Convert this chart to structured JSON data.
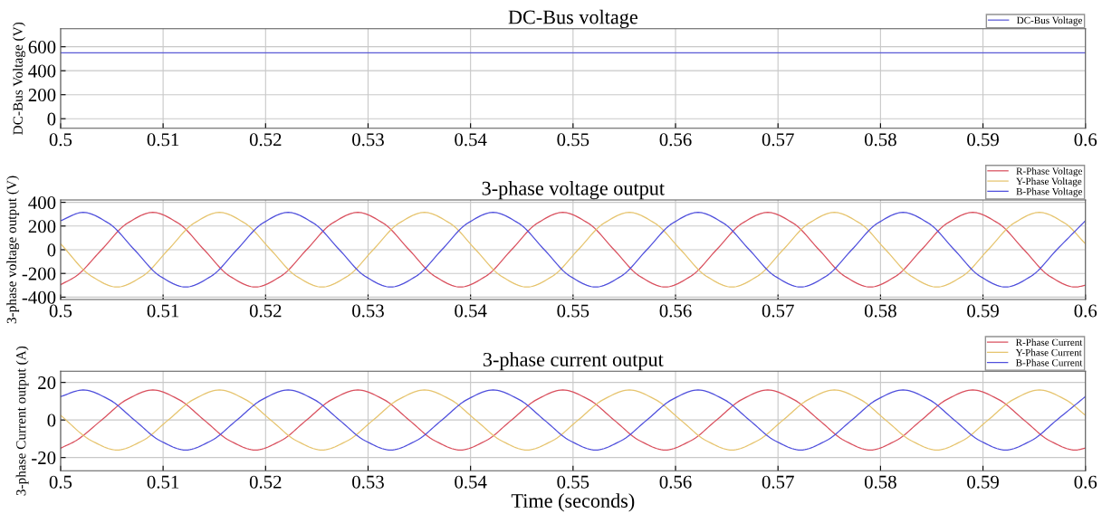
{
  "chart_data": [
    {
      "type": "line",
      "title": "DC-Bus voltage",
      "ylabel": "DC-Bus Voltage (V)",
      "xlim": [
        0.5,
        0.6
      ],
      "xticks": [
        0.5,
        0.51,
        0.52,
        0.53,
        0.54,
        0.55,
        0.56,
        0.57,
        0.58,
        0.59,
        0.6
      ],
      "ylim": [
        -80,
        750
      ],
      "yticks": [
        0,
        200,
        400,
        600
      ],
      "grid": true,
      "legend": "top right",
      "series": [
        {
          "name": "DC-Bus Voltage",
          "color": "#5a5ad6",
          "x": [
            0.5,
            0.6
          ],
          "values": [
            550,
            550
          ]
        }
      ]
    },
    {
      "type": "line",
      "title": "3-phase voltage output",
      "ylabel": "3-phase voltage output (V)",
      "xlim": [
        0.5,
        0.6
      ],
      "xticks": [
        0.5,
        0.51,
        0.52,
        0.53,
        0.54,
        0.55,
        0.56,
        0.57,
        0.58,
        0.59,
        0.6
      ],
      "ylim": [
        -420,
        420
      ],
      "yticks": [
        -400,
        -200,
        0,
        200,
        400
      ],
      "grid": true,
      "legend": "top right",
      "series": [
        {
          "name": "R-Phase Voltage",
          "color": "#d9505e",
          "x": [
            0.5,
            0.5015,
            0.504,
            0.5065,
            0.509,
            0.5115,
            0.514,
            0.5165,
            0.519,
            0.5215,
            0.524,
            0.5265,
            0.529,
            0.5315,
            0.534,
            0.5365,
            0.539,
            0.5415,
            0.544,
            0.5465,
            0.549,
            0.5515,
            0.554,
            0.5565,
            0.559,
            0.5615,
            0.564,
            0.5665,
            0.569,
            0.5715,
            0.574,
            0.5765,
            0.579,
            0.5815,
            0.584,
            0.5865,
            0.589,
            0.5915,
            0.594,
            0.5965,
            0.599,
            0.6
          ],
          "values": [
            -295,
            -223,
            0,
            223,
            315,
            223,
            0,
            -223,
            -315,
            -223,
            0,
            223,
            315,
            223,
            0,
            -223,
            -315,
            -223,
            0,
            223,
            315,
            223,
            0,
            -223,
            -315,
            -223,
            0,
            223,
            315,
            223,
            0,
            -223,
            -315,
            -223,
            0,
            223,
            315,
            223,
            0,
            -223,
            -315,
            -300
          ]
        },
        {
          "name": "Y-Phase Voltage",
          "color": "#e6c46e",
          "x": [
            0.5,
            0.503,
            0.5055,
            0.508,
            0.5105,
            0.513,
            0.5155,
            0.518,
            0.5205,
            0.523,
            0.5255,
            0.528,
            0.5305,
            0.533,
            0.5355,
            0.538,
            0.5405,
            0.543,
            0.5455,
            0.548,
            0.5505,
            0.553,
            0.5555,
            0.558,
            0.5605,
            0.563,
            0.5655,
            0.568,
            0.5705,
            0.573,
            0.5755,
            0.578,
            0.5805,
            0.583,
            0.5855,
            0.588,
            0.5905,
            0.593,
            0.5955,
            0.598,
            0.6
          ],
          "values": [
            50,
            -223,
            -315,
            -223,
            0,
            223,
            315,
            223,
            0,
            -223,
            -315,
            -223,
            0,
            223,
            315,
            223,
            0,
            -223,
            -315,
            -223,
            0,
            223,
            315,
            223,
            0,
            -223,
            -315,
            -223,
            0,
            223,
            315,
            223,
            0,
            -223,
            -315,
            -223,
            0,
            223,
            315,
            223,
            50
          ]
        },
        {
          "name": "B-Phase Voltage",
          "color": "#4f4fdc",
          "x": [
            0.5,
            0.5022,
            0.5047,
            0.5072,
            0.5097,
            0.5122,
            0.5147,
            0.5172,
            0.5197,
            0.5222,
            0.5247,
            0.5272,
            0.5297,
            0.5322,
            0.5347,
            0.5372,
            0.5397,
            0.5422,
            0.5447,
            0.5472,
            0.5497,
            0.5522,
            0.5547,
            0.5572,
            0.5597,
            0.5622,
            0.5647,
            0.5672,
            0.5697,
            0.5722,
            0.5747,
            0.5772,
            0.5797,
            0.5822,
            0.5847,
            0.5872,
            0.5897,
            0.5922,
            0.5947,
            0.5972,
            0.6
          ],
          "values": [
            245,
            315,
            223,
            0,
            -223,
            -315,
            -223,
            0,
            223,
            315,
            223,
            0,
            -223,
            -315,
            -223,
            0,
            223,
            315,
            223,
            0,
            -223,
            -315,
            -223,
            0,
            223,
            315,
            223,
            0,
            -223,
            -315,
            -223,
            0,
            223,
            315,
            223,
            0,
            -223,
            -315,
            -223,
            0,
            245
          ]
        }
      ]
    },
    {
      "type": "line",
      "title": "3-phase current output",
      "ylabel": "3-phase Current output (A)",
      "xlabel": "Time (seconds)",
      "xlim": [
        0.5,
        0.6
      ],
      "xticks": [
        0.5,
        0.51,
        0.52,
        0.53,
        0.54,
        0.55,
        0.56,
        0.57,
        0.58,
        0.59,
        0.6
      ],
      "ylim": [
        -27,
        26
      ],
      "yticks": [
        -20,
        0,
        20
      ],
      "grid": true,
      "legend": "top right",
      "series": [
        {
          "name": "R-Phase Current",
          "color": "#d9505e",
          "x": [
            0.5,
            0.5015,
            0.504,
            0.5065,
            0.509,
            0.5115,
            0.514,
            0.5165,
            0.519,
            0.5215,
            0.524,
            0.5265,
            0.529,
            0.5315,
            0.534,
            0.5365,
            0.539,
            0.5415,
            0.544,
            0.5465,
            0.549,
            0.5515,
            0.554,
            0.5565,
            0.559,
            0.5615,
            0.564,
            0.5665,
            0.569,
            0.5715,
            0.574,
            0.5765,
            0.579,
            0.5815,
            0.584,
            0.5865,
            0.589,
            0.5915,
            0.594,
            0.5965,
            0.599,
            0.6
          ],
          "values": [
            -15,
            -11,
            0,
            11,
            16,
            11,
            0,
            -11,
            -16,
            -11,
            0,
            11,
            16,
            11,
            0,
            -11,
            -16,
            -11,
            0,
            11,
            16,
            11,
            0,
            -11,
            -16,
            -11,
            0,
            11,
            16,
            11,
            0,
            -11,
            -16,
            -11,
            0,
            11,
            16,
            11,
            0,
            -11,
            -16,
            -15
          ]
        },
        {
          "name": "Y-Phase Current",
          "color": "#e6c46e",
          "x": [
            0.5,
            0.503,
            0.5055,
            0.508,
            0.5105,
            0.513,
            0.5155,
            0.518,
            0.5205,
            0.523,
            0.5255,
            0.528,
            0.5305,
            0.533,
            0.5355,
            0.538,
            0.5405,
            0.543,
            0.5455,
            0.548,
            0.5505,
            0.553,
            0.5555,
            0.558,
            0.5605,
            0.563,
            0.5655,
            0.568,
            0.5705,
            0.573,
            0.5755,
            0.578,
            0.5805,
            0.583,
            0.5855,
            0.588,
            0.5905,
            0.593,
            0.5955,
            0.598,
            0.6
          ],
          "values": [
            2.5,
            -11,
            -16,
            -11,
            0,
            11,
            16,
            11,
            0,
            -11,
            -16,
            -11,
            0,
            11,
            16,
            11,
            0,
            -11,
            -16,
            -11,
            0,
            11,
            16,
            11,
            0,
            -11,
            -16,
            -11,
            0,
            11,
            16,
            11,
            0,
            -11,
            -16,
            -11,
            0,
            11,
            16,
            11,
            2.5
          ]
        },
        {
          "name": "B-Phase Current",
          "color": "#4f4fdc",
          "x": [
            0.5,
            0.5022,
            0.5047,
            0.5072,
            0.5097,
            0.5122,
            0.5147,
            0.5172,
            0.5197,
            0.5222,
            0.5247,
            0.5272,
            0.5297,
            0.5322,
            0.5347,
            0.5372,
            0.5397,
            0.5422,
            0.5447,
            0.5472,
            0.5497,
            0.5522,
            0.5547,
            0.5572,
            0.5597,
            0.5622,
            0.5647,
            0.5672,
            0.5697,
            0.5722,
            0.5747,
            0.5772,
            0.5797,
            0.5822,
            0.5847,
            0.5872,
            0.5897,
            0.5922,
            0.5947,
            0.5972,
            0.6
          ],
          "values": [
            12.5,
            16,
            11,
            0,
            -11,
            -16,
            -11,
            0,
            11,
            16,
            11,
            0,
            -11,
            -16,
            -11,
            0,
            11,
            16,
            11,
            0,
            -11,
            -16,
            -11,
            0,
            11,
            16,
            11,
            0,
            -11,
            -16,
            -11,
            0,
            11,
            16,
            11,
            0,
            -11,
            -16,
            -11,
            0,
            12.5
          ]
        }
      ]
    }
  ]
}
